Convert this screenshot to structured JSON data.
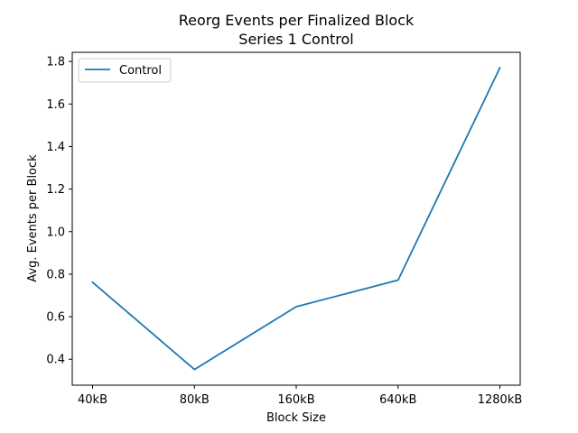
{
  "chart_data": {
    "type": "line",
    "title": "Reorg Events per Finalized Block",
    "subtitle": "Series 1 Control",
    "xlabel": "Block Size",
    "ylabel": "Avg. Events per Block",
    "categories": [
      "40kB",
      "80kB",
      "160kB",
      "640kB",
      "1280kB"
    ],
    "series": [
      {
        "name": "Control",
        "values": [
          0.762,
          0.352,
          0.647,
          0.772,
          1.77
        ],
        "color": "#1f77b4"
      }
    ],
    "ylim": [
      0.278,
      1.843
    ],
    "yticks": [
      0.4,
      0.6,
      0.8,
      1.0,
      1.2,
      1.4,
      1.6,
      1.8
    ],
    "ytick_labels": [
      "0.4",
      "0.6",
      "0.8",
      "1.0",
      "1.2",
      "1.4",
      "1.6",
      "1.8"
    ],
    "grid": false,
    "legend": "top-left"
  }
}
